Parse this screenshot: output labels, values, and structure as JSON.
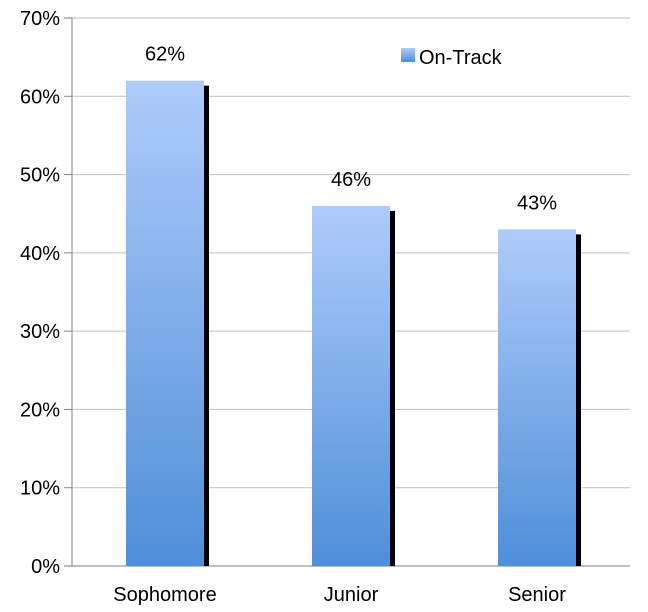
{
  "chart_data": {
    "type": "bar",
    "categories": [
      "Sophomore",
      "Junior",
      "Senior"
    ],
    "series": [
      {
        "name": "On-Track",
        "values": [
          62,
          46,
          43
        ]
      }
    ],
    "data_labels": [
      "62%",
      "46%",
      "43%"
    ],
    "ylim": [
      0,
      70
    ],
    "yticks": [
      0,
      10,
      20,
      30,
      40,
      50,
      60,
      70
    ],
    "ytick_labels": [
      "0%",
      "10%",
      "20%",
      "30%",
      "40%",
      "50%",
      "60%",
      "70%"
    ],
    "grid": true,
    "legend_position": "top-right",
    "colors": {
      "bar_top": "#AECBFA",
      "bar_bottom": "#4F8FD8",
      "shadow": "#000000",
      "grid": "#BFBFBF",
      "axis": "#808080"
    }
  }
}
